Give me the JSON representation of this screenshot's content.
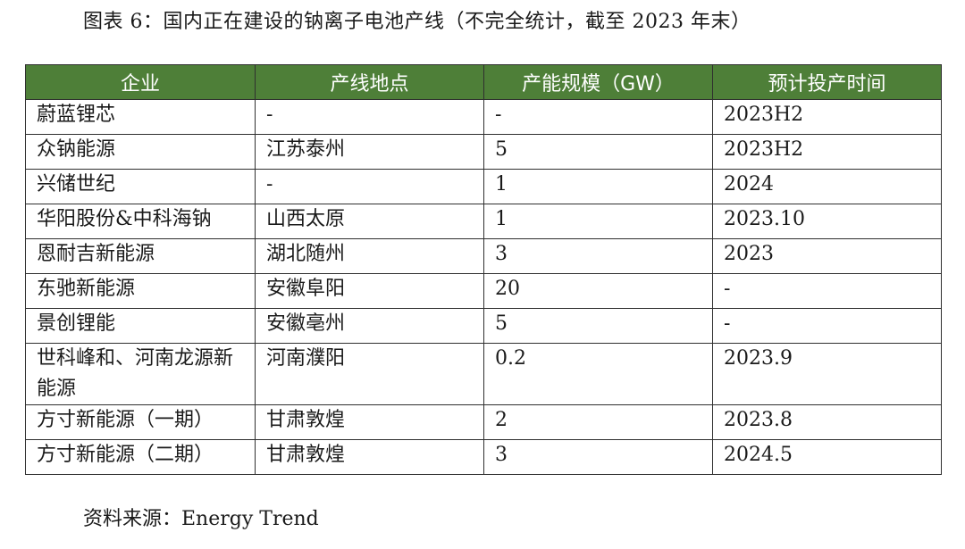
{
  "caption": "图表 6：国内正在建设的钠离子电池产线（不完全统计，截至 2023 年末）",
  "table": {
    "headers": [
      "企业",
      "产线地点",
      "产能规模（GW）",
      "预计投产时间"
    ],
    "rows": [
      [
        "蔚蓝锂芯",
        "-",
        "-",
        "2023H2"
      ],
      [
        "众钠能源",
        "江苏泰州",
        "5",
        "2023H2"
      ],
      [
        "兴储世纪",
        "-",
        "1",
        "2024"
      ],
      [
        "华阳股份&中科海钠",
        "山西太原",
        "1",
        "2023.10"
      ],
      [
        "恩耐吉新能源",
        "湖北随州",
        "3",
        "2023"
      ],
      [
        "东驰新能源",
        "安徽阜阳",
        "20",
        "-"
      ],
      [
        "景创锂能",
        "安徽亳州",
        "5",
        "-"
      ],
      [
        "世科峰和、河南龙源新能源",
        "河南濮阳",
        "0.2",
        "2023.9"
      ],
      [
        "方寸新能源（一期）",
        "甘肃敦煌",
        "2",
        "2023.8"
      ],
      [
        "方寸新能源（二期）",
        "甘肃敦煌",
        "3",
        "2024.5"
      ]
    ]
  },
  "source": "资料来源：Energy Trend"
}
